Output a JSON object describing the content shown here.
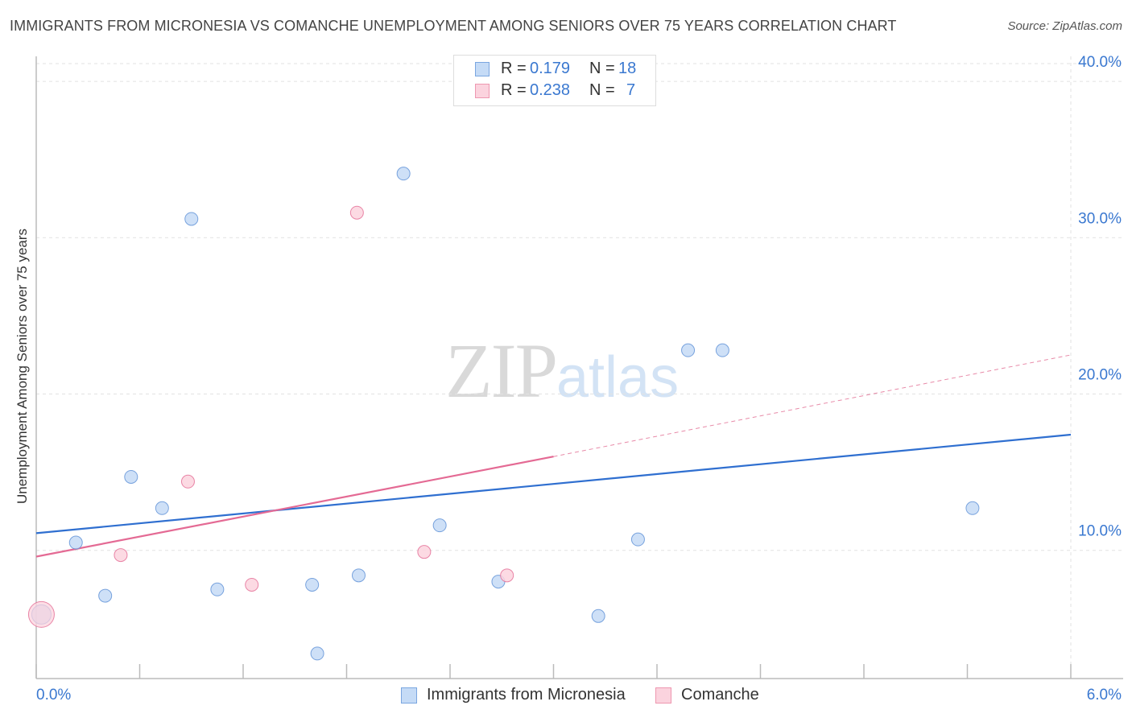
{
  "title": "IMMIGRANTS FROM MICRONESIA VS COMANCHE UNEMPLOYMENT AMONG SENIORS OVER 75 YEARS CORRELATION CHART",
  "source": "Source: ZipAtlas.com",
  "watermark": {
    "zip": "ZIP",
    "atlas": "atlas"
  },
  "legend_top": {
    "rows": [
      {
        "r_label": "R =",
        "r_value": "0.179",
        "n_label": "N =",
        "n_value": "18",
        "color": "#a9c8f0",
        "border": "#7aa6e0"
      },
      {
        "r_label": "R =",
        "r_value": "0.238",
        "n_label": "N =",
        "n_value": "7",
        "color": "#f7c0cf",
        "border": "#ee97b0"
      }
    ]
  },
  "legend_bottom": [
    {
      "label": "Immigrants from Micronesia",
      "color": "#c5dbf6",
      "border": "#7aa6e0"
    },
    {
      "label": "Comanche",
      "color": "#fbd3de",
      "border": "#ee97b0"
    }
  ],
  "chart_data": {
    "type": "scatter",
    "title": "IMMIGRANTS FROM MICRONESIA VS COMANCHE UNEMPLOYMENT AMONG SENIORS OVER 75 YEARS CORRELATION CHART",
    "xlabel": "",
    "ylabel": "Unemployment Among Seniors over 75 years",
    "xlim": [
      0,
      6
    ],
    "ylim": [
      1.8,
      41.6
    ],
    "x_tick_labels": [
      "0.0%",
      "6.0%"
    ],
    "y_ticks": [
      10,
      20,
      30,
      40
    ],
    "y_tick_labels": [
      "10.0%",
      "20.0%",
      "30.0%",
      "40.0%"
    ],
    "grid": true,
    "series": [
      {
        "name": "Immigrants from Micronesia",
        "color": "#5b8fd6",
        "fill": "#c5dbf6",
        "points": [
          [
            0.03,
            5.9
          ],
          [
            0.23,
            10.5
          ],
          [
            0.4,
            7.1
          ],
          [
            0.55,
            14.7
          ],
          [
            0.73,
            12.7
          ],
          [
            0.9,
            31.2
          ],
          [
            1.05,
            7.5
          ],
          [
            1.6,
            7.8
          ],
          [
            1.63,
            3.4
          ],
          [
            1.87,
            8.4
          ],
          [
            2.13,
            34.1
          ],
          [
            2.34,
            11.6
          ],
          [
            2.68,
            8.0
          ],
          [
            3.26,
            5.8
          ],
          [
            3.49,
            10.7
          ],
          [
            3.78,
            22.8
          ],
          [
            3.98,
            22.8
          ],
          [
            5.43,
            12.7
          ]
        ],
        "trend": {
          "x": [
            0,
            6
          ],
          "y": [
            11.1,
            17.4
          ]
        }
      },
      {
        "name": "Comanche",
        "color": "#e46a94",
        "fill": "#fbd3de",
        "points": [
          [
            0.03,
            5.9
          ],
          [
            0.49,
            9.7
          ],
          [
            0.88,
            14.4
          ],
          [
            1.25,
            7.8
          ],
          [
            1.86,
            31.6
          ],
          [
            2.25,
            9.9
          ],
          [
            2.73,
            8.4
          ]
        ],
        "trend": {
          "x": [
            0,
            3.0
          ],
          "y": [
            9.6,
            16.0
          ]
        },
        "trend_extension": {
          "x": [
            3.0,
            6
          ],
          "y": [
            16.0,
            22.5
          ]
        }
      }
    ]
  }
}
